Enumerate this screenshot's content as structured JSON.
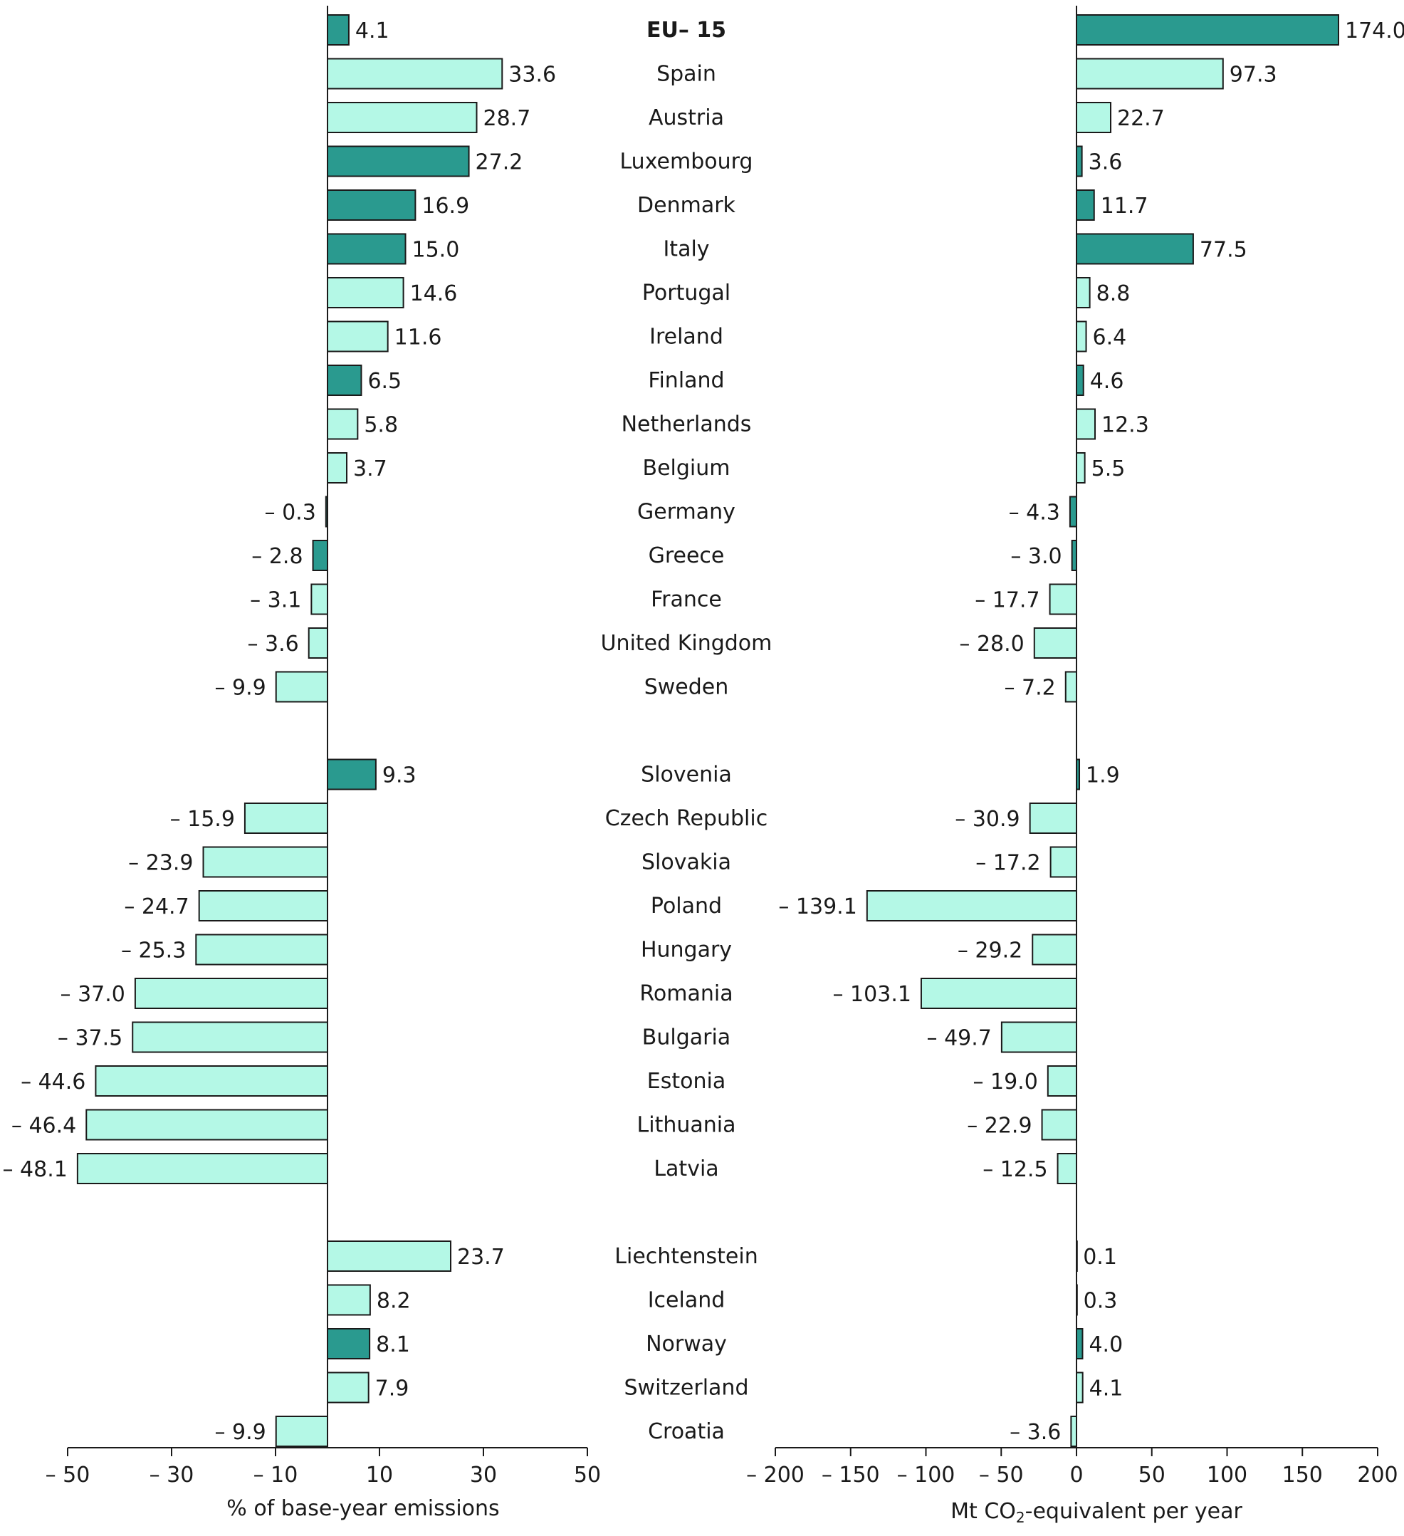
{
  "colors": {
    "dark": "#2a9a8f",
    "light": "#b4f8e6",
    "stroke": "#1a1a1a"
  },
  "chart_data": [
    {
      "type": "bar",
      "orientation": "horizontal",
      "xlabel": "% of base-year emissions",
      "xlim": [
        -50,
        50
      ],
      "xticks": [
        -50,
        -30,
        -10,
        10,
        30,
        50
      ],
      "xtick_labels": [
        "– 50",
        "– 30",
        "– 10",
        "10",
        "30",
        "50"
      ],
      "categories": [
        "EU– 15",
        "Spain",
        "Austria",
        "Luxembourg",
        "Denmark",
        "Italy",
        "Portugal",
        "Ireland",
        "Finland",
        "Netherlands",
        "Belgium",
        "Germany",
        "Greece",
        "France",
        "United Kingdom",
        "Sweden",
        "Slovenia",
        "Czech Republic",
        "Slovakia",
        "Poland",
        "Hungary",
        "Romania",
        "Bulgaria",
        "Estonia",
        "Lithuania",
        "Latvia",
        "Liechtenstein",
        "Iceland",
        "Norway",
        "Switzerland",
        "Croatia"
      ],
      "values": [
        4.1,
        33.6,
        28.7,
        27.2,
        16.9,
        15.0,
        14.6,
        11.6,
        6.5,
        5.8,
        3.7,
        -0.3,
        -2.8,
        -3.1,
        -3.6,
        -9.9,
        9.3,
        -15.9,
        -23.9,
        -24.7,
        -25.3,
        -37.0,
        -37.5,
        -44.6,
        -46.4,
        -48.1,
        23.7,
        8.2,
        8.1,
        7.9,
        -9.9
      ],
      "value_labels": [
        "4.1",
        "33.6",
        "28.7",
        "27.2",
        "16.9",
        "15.0",
        "14.6",
        "11.6",
        "6.5",
        "5.8",
        "3.7",
        "– 0.3",
        "– 2.8",
        "– 3.1",
        "– 3.6",
        "– 9.9",
        "9.3",
        "– 15.9",
        "– 23.9",
        "– 24.7",
        "– 25.3",
        "– 37.0",
        "– 37.5",
        "– 44.6",
        "– 46.4",
        "– 48.1",
        "23.7",
        "8.2",
        "8.1",
        "7.9",
        "– 9.9"
      ],
      "highlight": [
        true,
        false,
        false,
        true,
        true,
        true,
        false,
        false,
        true,
        false,
        false,
        true,
        true,
        false,
        false,
        false,
        true,
        false,
        false,
        false,
        false,
        false,
        false,
        false,
        false,
        false,
        false,
        false,
        true,
        false,
        false
      ]
    },
    {
      "type": "bar",
      "orientation": "horizontal",
      "xlabel_parts": [
        "Mt CO",
        "2",
        "-equivalent per year"
      ],
      "xlim": [
        -200,
        200
      ],
      "xticks": [
        -200,
        -150,
        -100,
        -50,
        0,
        50,
        100,
        150,
        200
      ],
      "xtick_labels": [
        "– 200",
        "– 150",
        "– 100",
        "– 50",
        "0",
        "50",
        "100",
        "150",
        "200"
      ],
      "categories": [
        "EU– 15",
        "Spain",
        "Austria",
        "Luxembourg",
        "Denmark",
        "Italy",
        "Portugal",
        "Ireland",
        "Finland",
        "Netherlands",
        "Belgium",
        "Germany",
        "Greece",
        "France",
        "United Kingdom",
        "Sweden",
        "Slovenia",
        "Czech Republic",
        "Slovakia",
        "Poland",
        "Hungary",
        "Romania",
        "Bulgaria",
        "Estonia",
        "Lithuania",
        "Latvia",
        "Liechtenstein",
        "Iceland",
        "Norway",
        "Switzerland",
        "Croatia"
      ],
      "values": [
        174.0,
        97.3,
        22.7,
        3.6,
        11.7,
        77.5,
        8.8,
        6.4,
        4.6,
        12.3,
        5.5,
        -4.3,
        -3.0,
        -17.7,
        -28.0,
        -7.2,
        1.9,
        -30.9,
        -17.2,
        -139.1,
        -29.2,
        -103.1,
        -49.7,
        -19.0,
        -22.9,
        -12.5,
        0.1,
        0.3,
        4.0,
        4.1,
        -3.6
      ],
      "value_labels": [
        "174.0",
        "97.3",
        "22.7",
        "3.6",
        "11.7",
        "77.5",
        "8.8",
        "6.4",
        "4.6",
        "12.3",
        "5.5",
        "– 4.3",
        "– 3.0",
        "– 17.7",
        "– 28.0",
        "– 7.2",
        "1.9",
        "– 30.9",
        "– 17.2",
        "– 139.1",
        "– 29.2",
        "– 103.1",
        "– 49.7",
        "– 19.0",
        "– 22.9",
        "– 12.5",
        "0.1",
        "0.3",
        "4.0",
        "4.1",
        "– 3.6"
      ],
      "highlight": [
        true,
        false,
        false,
        true,
        true,
        true,
        false,
        false,
        true,
        false,
        false,
        true,
        true,
        false,
        false,
        false,
        true,
        false,
        false,
        false,
        false,
        false,
        false,
        false,
        false,
        false,
        false,
        false,
        true,
        false,
        false
      ]
    }
  ]
}
